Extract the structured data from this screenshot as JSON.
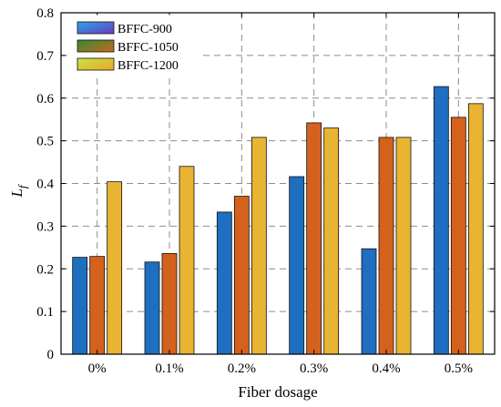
{
  "chart_data": {
    "type": "bar",
    "xlabel": "Fiber dosage",
    "ylabel": "L",
    "ylabel_subscript": "f",
    "categories": [
      "0%",
      "0.1%",
      "0.2%",
      "0.3%",
      "0.4%",
      "0.5%"
    ],
    "ylim": [
      0,
      0.8
    ],
    "yticks": [
      0,
      0.1,
      0.2,
      0.3,
      0.4,
      0.5,
      0.6,
      0.7,
      0.8
    ],
    "ytick_labels": [
      "0",
      "0.1",
      "0.2",
      "0.3",
      "0.4",
      "0.5",
      "0.6",
      "0.7",
      "0.8"
    ],
    "grid": true,
    "legend_position": "top-left",
    "series": [
      {
        "name": "BFFC-900",
        "values": [
          0.227,
          0.216,
          0.333,
          0.416,
          0.247,
          0.627
        ],
        "color": "#1f6fc0",
        "legend_gradient": [
          "#2ba4e8",
          "#6a3bbf"
        ]
      },
      {
        "name": "BFFC-1050",
        "values": [
          0.229,
          0.236,
          0.37,
          0.542,
          0.508,
          0.555
        ],
        "color": "#d4621c",
        "legend_gradient": [
          "#2e8b3a",
          "#c96a1a"
        ]
      },
      {
        "name": "BFFC-1200",
        "values": [
          0.404,
          0.44,
          0.508,
          0.53,
          0.508,
          0.587
        ],
        "color": "#e8b431",
        "legend_gradient": [
          "#c8e24a",
          "#e8a828"
        ]
      }
    ]
  }
}
